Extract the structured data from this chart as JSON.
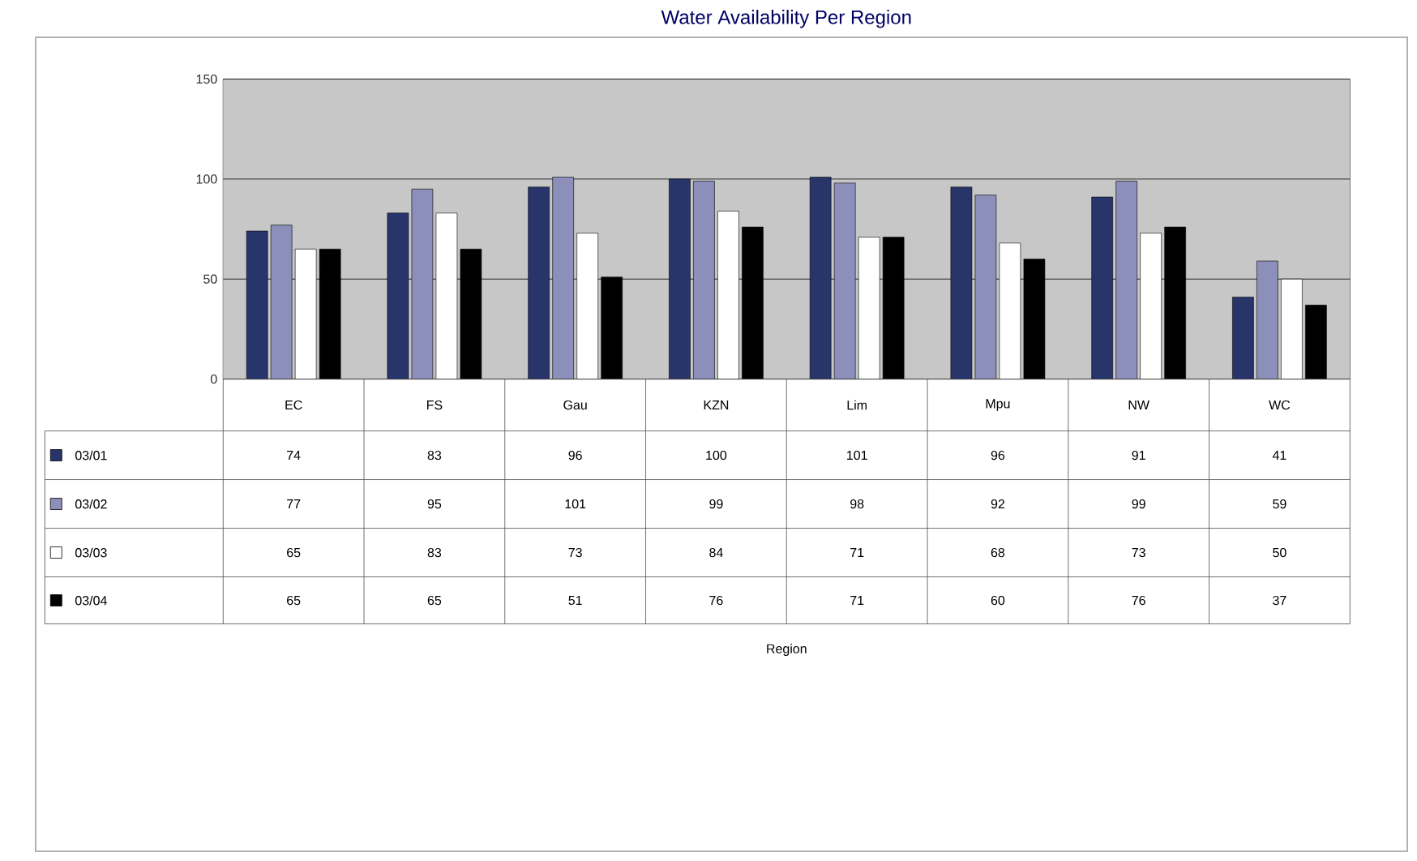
{
  "chart_data": {
    "type": "bar",
    "title": "Water Availability Per Region",
    "annotations": [
      "Region"
    ],
    "legend": "bottom left",
    "categories": [
      "EC",
      "FS",
      "Gau",
      "KZN",
      "Lim",
      "Mpu",
      "NW",
      "WC"
    ],
    "series": [
      {
        "name": "03/01",
        "color": "#27356b",
        "values": [
          74,
          83,
          96,
          100,
          101,
          96,
          91,
          41
        ]
      },
      {
        "name": "03/02",
        "color": "#8b8fba",
        "values": [
          77,
          95,
          101,
          99,
          98,
          92,
          99,
          59
        ]
      },
      {
        "name": "03/03",
        "color": "#ffffff",
        "values": [
          65,
          83,
          73,
          84,
          71,
          68,
          73,
          50
        ]
      },
      {
        "name": "03/04",
        "color": "#000000",
        "values": [
          65,
          65,
          51,
          76,
          71,
          60,
          76,
          37
        ]
      }
    ],
    "ylim": [
      0,
      150
    ],
    "yticks": [
      0,
      50,
      100,
      150
    ],
    "grid": "y",
    "data_labels": true
  }
}
